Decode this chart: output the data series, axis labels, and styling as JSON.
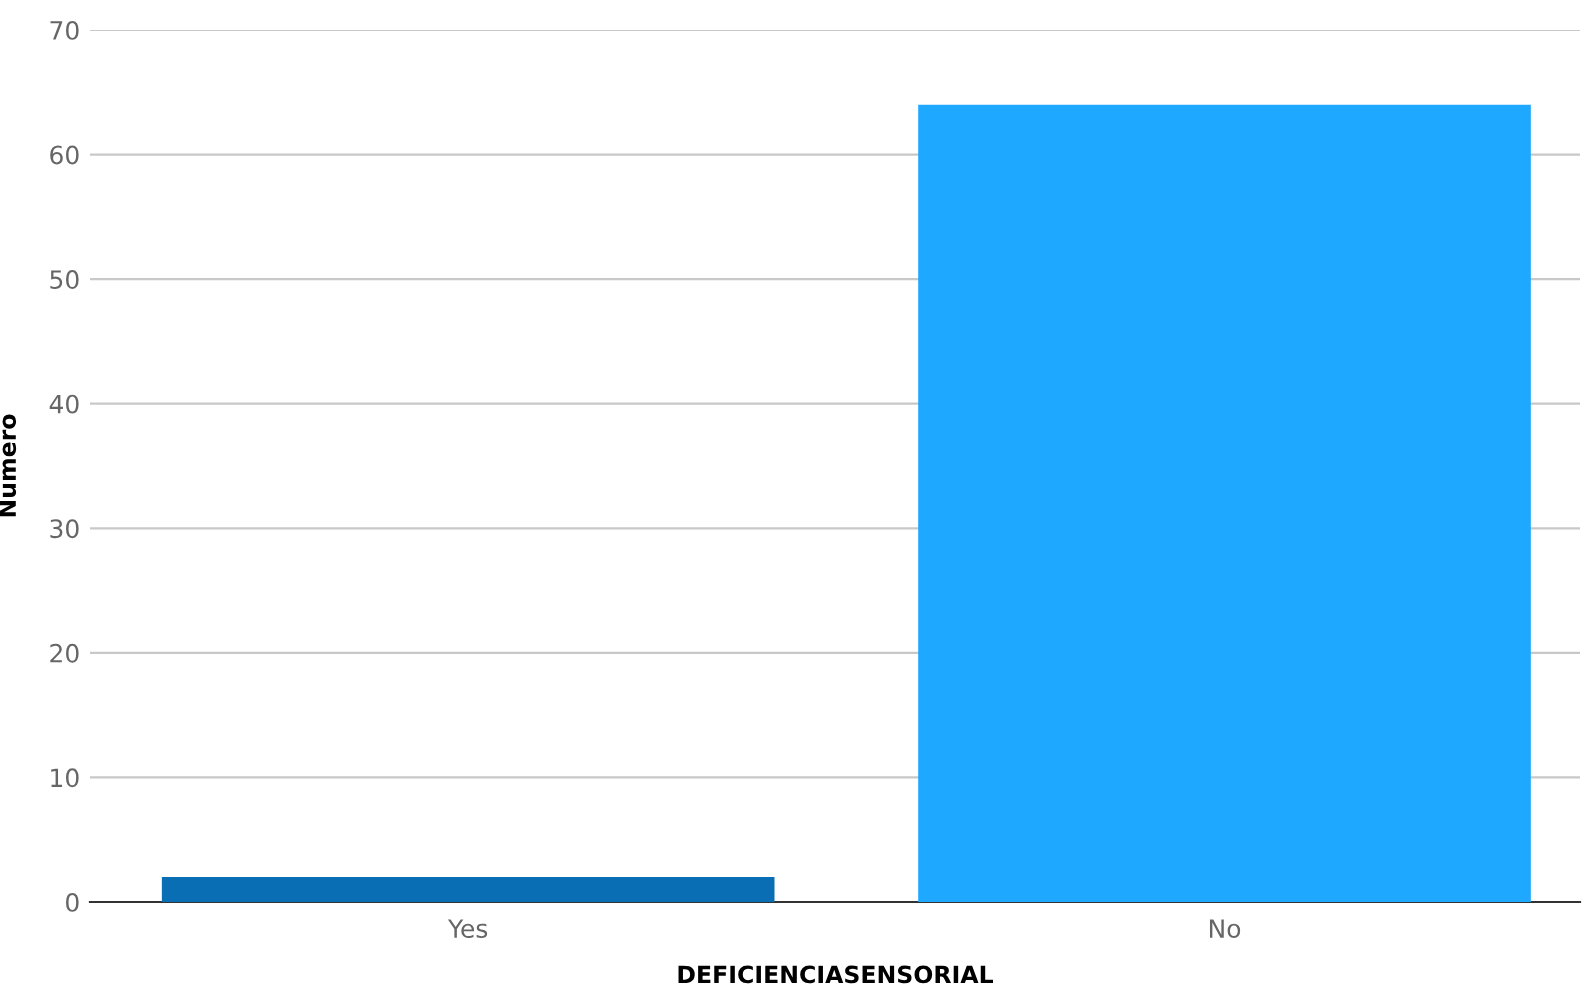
{
  "chart_data": {
    "type": "bar",
    "xlabel": "DEFICIENCIASENSORIAL",
    "ylabel": "Numero",
    "categories": [
      "Yes",
      "No"
    ],
    "values": [
      2,
      64
    ],
    "colors": [
      "#0a6eb4",
      "#1ea8ff"
    ],
    "ylim": [
      0,
      70
    ],
    "yticks": [
      0,
      10,
      20,
      30,
      40,
      50,
      60,
      70
    ],
    "grid": "y",
    "legend": false
  }
}
